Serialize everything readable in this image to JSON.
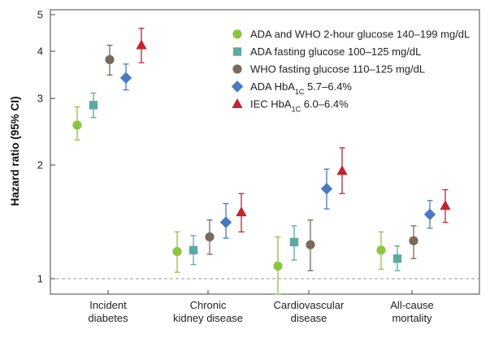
{
  "chart_data": {
    "type": "scatter",
    "subtype": "forest-plot-log-scale",
    "ylabel": "Hazard ratio (95% CI)",
    "yscale": "log",
    "ylim": [
      0.9,
      5
    ],
    "yticks": [
      1,
      2,
      3,
      4,
      5
    ],
    "reference_line": 1,
    "categories": [
      {
        "lines": [
          "Incident",
          "diabetes"
        ]
      },
      {
        "lines": [
          "Chronic",
          "kidney disease"
        ]
      },
      {
        "lines": [
          "Cardiovascular",
          "disease"
        ]
      },
      {
        "lines": [
          "All-cause",
          "mortality"
        ]
      }
    ],
    "series": [
      {
        "name": "ADA and WHO 2-hour glucose 140–199 mg/dL",
        "name_main": "ADA and WHO 2-hour glucose 140–199 mg/dL",
        "name_sub": "",
        "name_tail": "",
        "marker": "circle",
        "color": "#8cc63f",
        "values": [
          2.55,
          1.18,
          1.08,
          1.19
        ],
        "ci_low": [
          2.33,
          1.04,
          0.91,
          1.06
        ],
        "ci_high": [
          2.85,
          1.33,
          1.29,
          1.33
        ]
      },
      {
        "name": "ADA fasting glucose 100–125 mg/dL",
        "name_main": "ADA fasting glucose 100–125 mg/dL",
        "name_sub": "",
        "name_tail": "",
        "marker": "square",
        "color": "#5ea9a1",
        "values": [
          2.88,
          1.19,
          1.25,
          1.13
        ],
        "ci_low": [
          2.67,
          1.09,
          1.12,
          1.05
        ],
        "ci_high": [
          3.1,
          1.3,
          1.38,
          1.22
        ]
      },
      {
        "name": "WHO fasting glucose 110–125 mg/dL",
        "name_main": "WHO fasting glucose 110–125 mg/dL",
        "name_sub": "",
        "name_tail": "",
        "marker": "circle",
        "color": "#7a6a5a",
        "values": [
          3.8,
          1.29,
          1.23,
          1.26
        ],
        "ci_low": [
          3.46,
          1.16,
          1.05,
          1.13
        ],
        "ci_high": [
          4.15,
          1.43,
          1.43,
          1.38
        ]
      },
      {
        "name": "ADA HbA1C 5.7–6.4%",
        "name_main": "ADA HbA",
        "name_sub": "1C",
        "name_tail": " 5.7–6.4%",
        "marker": "diamond",
        "color": "#4a79c0",
        "values": [
          3.4,
          1.41,
          1.73,
          1.48
        ],
        "ci_low": [
          3.16,
          1.28,
          1.53,
          1.36
        ],
        "ci_high": [
          3.7,
          1.58,
          1.95,
          1.61
        ]
      },
      {
        "name": "IEC HbA1C 6.0–6.4%",
        "name_main": "IEC HbA",
        "name_sub": "1C",
        "name_tail": " 6.0–6.4%",
        "marker": "triangle",
        "color": "#c0262c",
        "values": [
          4.15,
          1.5,
          1.93,
          1.56
        ],
        "ci_low": [
          3.73,
          1.33,
          1.68,
          1.41
        ],
        "ci_high": [
          4.6,
          1.68,
          2.22,
          1.72
        ]
      }
    ]
  }
}
